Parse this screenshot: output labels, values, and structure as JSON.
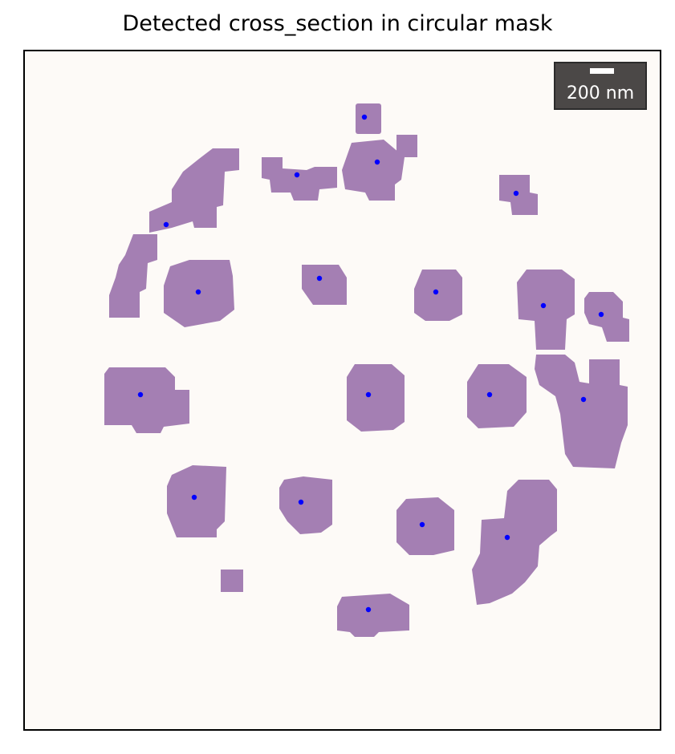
{
  "figure": {
    "title": "Detected cross_section in circular mask",
    "scalebar": {
      "label": "200 nm"
    },
    "mask_color": "#a47fb3",
    "background_color": "#fdfaf7",
    "marker_color": "#0000ff"
  },
  "detections": [
    {
      "name": "centroid-01"
    },
    {
      "name": "centroid-02"
    },
    {
      "name": "centroid-03"
    },
    {
      "name": "centroid-04"
    },
    {
      "name": "centroid-05"
    },
    {
      "name": "centroid-06"
    },
    {
      "name": "centroid-07"
    },
    {
      "name": "centroid-08"
    },
    {
      "name": "centroid-09"
    },
    {
      "name": "centroid-10"
    },
    {
      "name": "centroid-11"
    },
    {
      "name": "centroid-12"
    },
    {
      "name": "centroid-13"
    },
    {
      "name": "centroid-14"
    },
    {
      "name": "centroid-15"
    },
    {
      "name": "centroid-16"
    },
    {
      "name": "centroid-17"
    },
    {
      "name": "centroid-18"
    },
    {
      "name": "centroid-19"
    },
    {
      "name": "centroid-20"
    }
  ]
}
